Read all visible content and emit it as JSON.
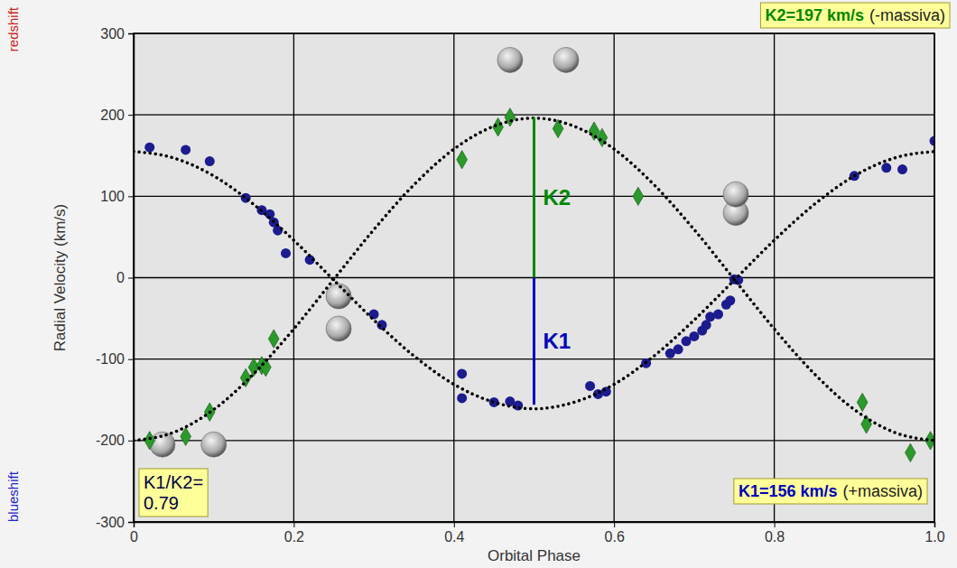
{
  "chart_data": {
    "type": "scatter",
    "xlabel": "Orbital Phase",
    "ylabel": "Radial Velocity (km/s)",
    "xlim": [
      0,
      1
    ],
    "ylim": [
      -300,
      300
    ],
    "xticks": [
      0,
      0.2,
      0.4,
      0.6,
      0.8,
      {
        "value": 1,
        "label": "1.0"
      }
    ],
    "yticks": [
      -300,
      -200,
      -100,
      0,
      100,
      200,
      300
    ],
    "grid": true,
    "series": [
      {
        "type": "scatter",
        "marker": "circle",
        "color": "#1c1c8f",
        "x": [
          0.02,
          0.065,
          0.095,
          0.14,
          0.16,
          0.17,
          0.175,
          0.18,
          0.19,
          0.22,
          0.3,
          0.31,
          0.41,
          0.41,
          0.45,
          0.47,
          0.48,
          0.57,
          0.58,
          0.59,
          0.64,
          0.67,
          0.68,
          0.69,
          0.7,
          0.71,
          0.715,
          0.72,
          0.73,
          0.74,
          0.745,
          0.75,
          0.755,
          0.9,
          0.94,
          0.96,
          1.0
        ],
        "values": [
          160,
          157,
          143,
          98,
          83,
          78,
          68,
          58,
          30,
          22,
          -45,
          -58,
          -118,
          -148,
          -153,
          -152,
          -157,
          -133,
          -143,
          -140,
          -105,
          -93,
          -88,
          -78,
          -72,
          -65,
          -58,
          -48,
          -45,
          -33,
          -28,
          -2,
          -3,
          125,
          135,
          133,
          168
        ]
      },
      {
        "type": "scatter",
        "marker": "diamond",
        "color": "#2a9a2a",
        "x": [
          0.02,
          0.065,
          0.095,
          0.14,
          0.15,
          0.16,
          0.165,
          0.175,
          0.41,
          0.455,
          0.47,
          0.53,
          0.575,
          0.585,
          0.63,
          0.91,
          0.915,
          0.97,
          0.995
        ],
        "values": [
          -200,
          -195,
          -165,
          -123,
          -110,
          -108,
          -110,
          -75,
          145,
          185,
          197,
          183,
          180,
          172,
          100,
          -153,
          -180,
          -215,
          -200
        ]
      },
      {
        "type": "line",
        "line_style": "dotted",
        "color": "#000000",
        "x": [
          0,
          0.05,
          0.1,
          0.15,
          0.2,
          0.25,
          0.3,
          0.35,
          0.4,
          0.45,
          0.5,
          0.55,
          0.6,
          0.65,
          0.7,
          0.75,
          0.8,
          0.85,
          0.9,
          0.95,
          1.0
        ],
        "values": [
          155,
          147,
          125,
          90,
          46,
          -3,
          -52,
          -96,
          -131,
          -153,
          -161,
          -153,
          -131,
          -96,
          -52,
          -3,
          46,
          90,
          125,
          147,
          155
        ]
      },
      {
        "type": "line",
        "line_style": "dotted",
        "color": "#000000",
        "x": [
          0,
          0.05,
          0.1,
          0.15,
          0.2,
          0.25,
          0.3,
          0.35,
          0.4,
          0.45,
          0.5,
          0.55,
          0.6,
          0.65,
          0.7,
          0.75,
          0.8,
          0.85,
          0.9,
          0.95,
          1.0
        ],
        "values": [
          -200,
          -190,
          -162,
          -118,
          -63,
          -2,
          59,
          114,
          158,
          186,
          196,
          186,
          158,
          114,
          59,
          -2,
          -63,
          -118,
          -162,
          -190,
          -200
        ]
      }
    ],
    "amplitudes": [
      {
        "label": "K2",
        "x": 0.5,
        "from": 0,
        "to": 197,
        "color": "#008800"
      },
      {
        "label": "K1",
        "x": 0.5,
        "from": 0,
        "to": -156,
        "color": "#0000bb"
      }
    ],
    "annotations": [
      {
        "text": "K2=197 km/s",
        "note": "(-massiva)",
        "color": "#008800"
      },
      {
        "text": "K1=156 km/s",
        "note": "(+massiva)",
        "color": "#0000bb"
      },
      {
        "text": "K1/K2=",
        "value": 0.79,
        "color": "#000044"
      }
    ],
    "side_labels": [
      {
        "text": "redshift",
        "color": "#cc2222"
      },
      {
        "text": "blueshift",
        "color": "#2222cc"
      }
    ]
  }
}
